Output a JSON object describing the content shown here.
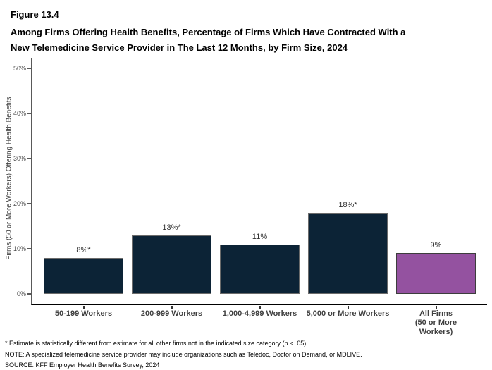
{
  "figure": {
    "label": "Figure 13.4",
    "title_lines": [
      "Among Firms Offering Health Benefits, Percentage of Firms Which Have Contracted With a",
      "New Telemedicine Service Provider in The Last 12 Months, by Firm Size, 2024"
    ]
  },
  "chart_data": {
    "type": "bar",
    "categories": [
      "50-199 Workers",
      "200-999 Workers",
      "1,000-4,999 Workers",
      "5,000 or More Workers",
      "All Firms\n(50 or More Workers)"
    ],
    "values": [
      8,
      13,
      11,
      18,
      9
    ],
    "bar_labels": [
      "8%*",
      "13%*",
      "11%",
      "18%*",
      "9%"
    ],
    "ylabel": "Firms (50 or More Workers) Offering Health Benefits",
    "xlabel": "",
    "ylim": [
      0,
      50
    ],
    "ytick_values": [
      0,
      10,
      20,
      30,
      40,
      50
    ],
    "ytick_labels": [
      "0%",
      "10%",
      "20%",
      "30%",
      "40%",
      "50%"
    ],
    "grid": false,
    "legend": "none",
    "bar_colors": [
      "#0c2336",
      "#0c2336",
      "#0c2336",
      "#0c2336",
      "#9452a0"
    ],
    "bar_border_colors": [
      "#6b6b6b",
      "#6b6b6b",
      "#6b6b6b",
      "#6b6b6b",
      "#3d3d3d"
    ]
  },
  "footnotes": [
    "* Estimate is statistically different from estimate for all other firms not in the indicated size category (p < .05).",
    "NOTE: A specialized telemedicine service provider may include organizations such as Teledoc, Doctor on Demand, or MDLIVE.",
    "SOURCE: KFF Employer Health Benefits Survey, 2024"
  ]
}
